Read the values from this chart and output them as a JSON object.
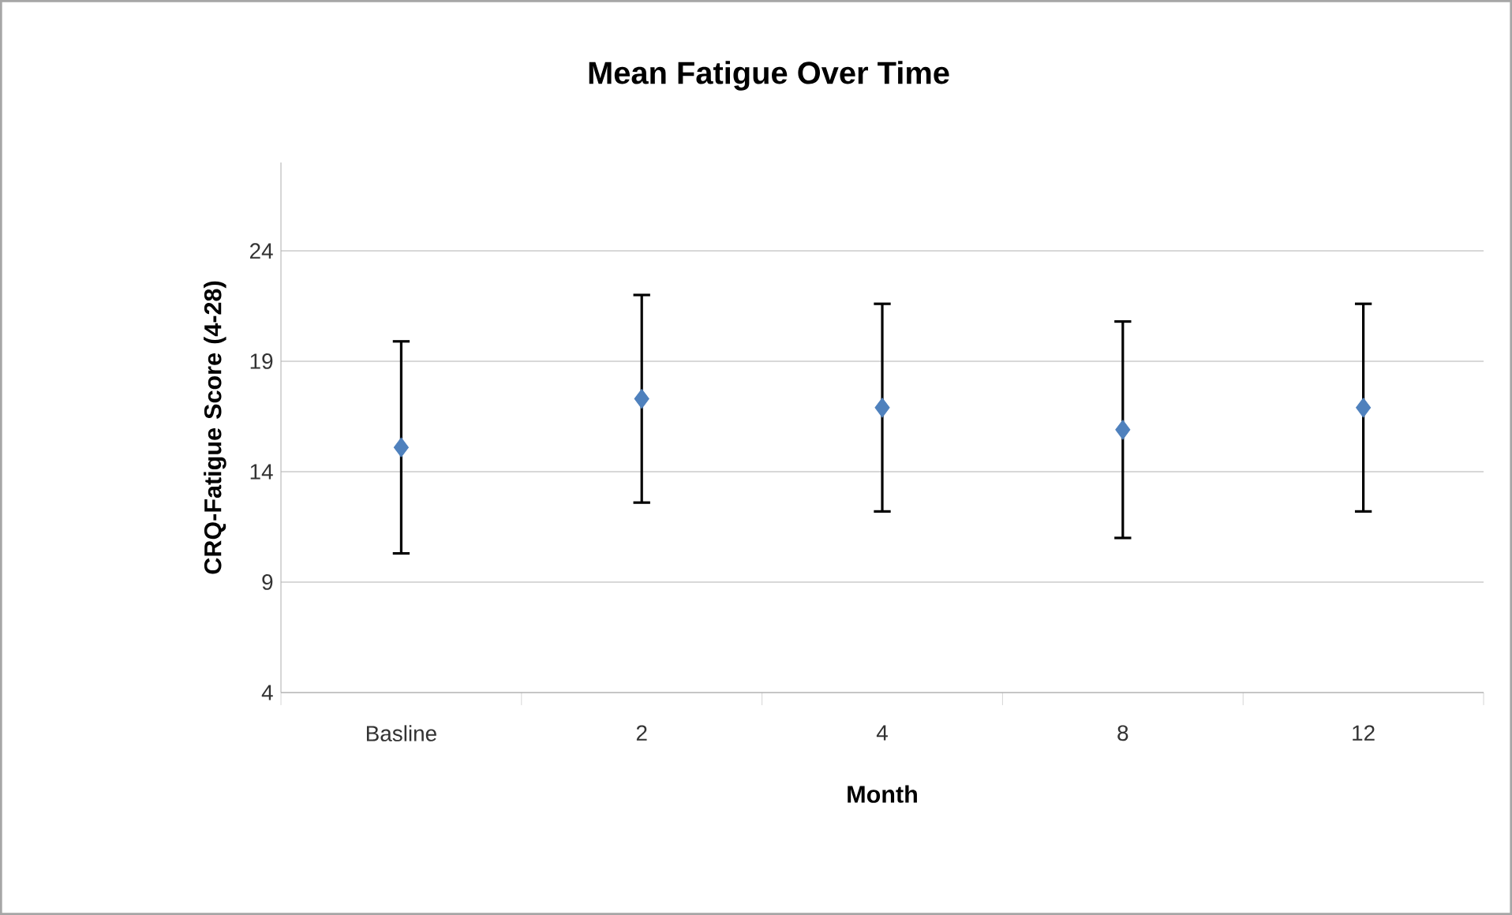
{
  "chart_data": {
    "type": "scatter",
    "title": "Mean Fatigue Over Time",
    "xlabel": "Month",
    "ylabel": "CRQ-Fatigue Score (4-28)",
    "categories": [
      "Basline",
      "2",
      "4",
      "8",
      "12"
    ],
    "values": [
      15.1,
      17.3,
      16.9,
      15.9,
      16.9
    ],
    "errors": [
      4.8,
      4.7,
      4.7,
      4.9,
      4.7
    ],
    "color": "#4f81bd",
    "marker": "diamond",
    "grid": "y",
    "ylim": [
      4,
      28
    ],
    "yticks": [
      4,
      9,
      14,
      19,
      24
    ]
  }
}
